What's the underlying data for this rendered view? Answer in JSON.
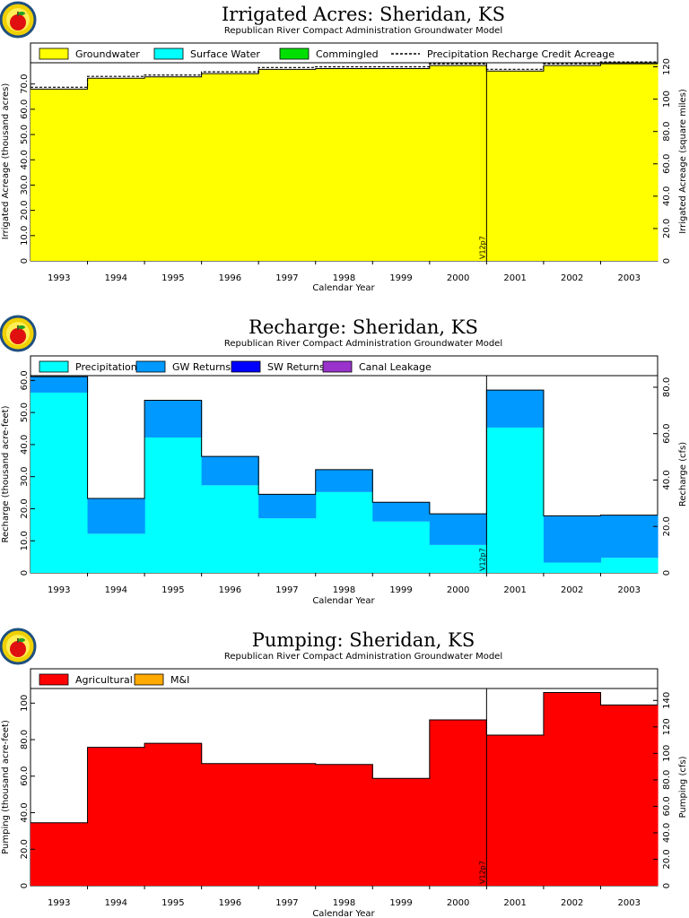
{
  "chart_data": [
    {
      "type": "area",
      "id": "acres",
      "title": "Irrigated Acres: Sheridan, KS",
      "subtitle": "Republican River Compact Administration Groundwater Model",
      "xlabel": "Calendar Year",
      "ylabel": "Irrigated Acreage (thousand acres)",
      "ylabel_right": "Irrigated Acreage (square miles)",
      "ylim": [
        0,
        78.4
      ],
      "ylim_right": [
        0,
        122.5
      ],
      "yticks": [
        10,
        20,
        30,
        40,
        50,
        60,
        70
      ],
      "ytick_labels": [
        "10.0",
        "20.0",
        "30.0",
        "40.0",
        "50.0",
        "60.0",
        "70.0"
      ],
      "yticks_right": [
        20,
        40,
        60,
        80,
        100,
        120
      ],
      "ytick_labels_right": [
        "20.0",
        "40.0",
        "60.0",
        "80.0",
        "100",
        "120"
      ],
      "categories": [
        "1993",
        "1994",
        "1995",
        "1996",
        "1997",
        "1998",
        "1999",
        "2000",
        "2001",
        "2002",
        "2003"
      ],
      "series": [
        {
          "name": "Groundwater",
          "color": "#ffff00",
          "kind": "fill",
          "values": [
            68.0,
            72.3,
            72.8,
            74.1,
            75.8,
            76.1,
            76.1,
            77.3,
            75.1,
            77.3,
            78.0
          ]
        },
        {
          "name": "Surface Water",
          "color": "#00ffff",
          "kind": "fill",
          "values": [
            0,
            0,
            0,
            0,
            0,
            0,
            0,
            0,
            0,
            0,
            0
          ]
        },
        {
          "name": "Commingled",
          "color": "#00e000",
          "kind": "fill",
          "values": [
            0,
            0,
            0,
            0,
            0,
            0,
            0,
            0,
            0,
            0,
            0
          ]
        },
        {
          "name": "Precipitation Recharge Credit Acreage",
          "color": "#000000",
          "kind": "dashed",
          "values": [
            68.0,
            72.3,
            72.8,
            74.1,
            75.8,
            76.1,
            76.1,
            77.3,
            75.1,
            77.3,
            78.0
          ]
        }
      ],
      "marker": {
        "label": "V12p7",
        "after_category": "2000"
      },
      "legend_position": "top"
    },
    {
      "type": "area",
      "id": "recharge",
      "title": "Recharge: Sheridan, KS",
      "subtitle": "Republican River Compact Administration Groundwater Model",
      "xlabel": "Calendar Year",
      "ylabel": "Recharge (thousand acre-feet)",
      "ylabel_right": "Recharge (cfs)",
      "ylim": [
        0,
        61.5
      ],
      "ylim_right": [
        0,
        85
      ],
      "yticks": [
        10,
        20,
        30,
        40,
        50,
        60
      ],
      "ytick_labels": [
        "10.0",
        "20.0",
        "30.0",
        "40.0",
        "50.0",
        "60.0"
      ],
      "yticks_right": [
        20,
        40,
        60,
        80
      ],
      "ytick_labels_right": [
        "20.0",
        "40.0",
        "60.0",
        "80.0"
      ],
      "categories": [
        "1993",
        "1994",
        "1995",
        "1996",
        "1997",
        "1998",
        "1999",
        "2000",
        "2001",
        "2002",
        "2003"
      ],
      "series": [
        {
          "name": "Precipitation",
          "color": "#00ffff",
          "kind": "fill",
          "values": [
            56.2,
            12.2,
            42.2,
            27.3,
            17.0,
            25.2,
            16.0,
            8.7,
            45.3,
            3.2,
            4.7
          ]
        },
        {
          "name": "GW Returns",
          "color": "#0099ff",
          "kind": "fill",
          "values": [
            5.0,
            11.0,
            11.6,
            9.0,
            7.5,
            7.0,
            6.0,
            9.7,
            11.7,
            14.6,
            13.3
          ]
        },
        {
          "name": "SW Returns",
          "color": "#0000ff",
          "kind": "fill",
          "values": [
            0,
            0,
            0,
            0,
            0,
            0,
            0,
            0,
            0,
            0,
            0
          ]
        },
        {
          "name": "Canal Leakage",
          "color": "#9933cc",
          "kind": "fill",
          "values": [
            0,
            0,
            0,
            0,
            0,
            0,
            0,
            0,
            0,
            0,
            0
          ]
        }
      ],
      "marker": {
        "label": "V12p7",
        "after_category": "2000"
      },
      "legend_position": "top"
    },
    {
      "type": "area",
      "id": "pumping",
      "title": "Pumping: Sheridan, KS",
      "subtitle": "Republican River Compact Administration Groundwater Model",
      "xlabel": "Calendar Year",
      "ylabel": "Pumping (thousand acre-feet)",
      "ylabel_right": "Pumping (cfs)",
      "ylim": [
        0,
        108
      ],
      "ylim_right": [
        0,
        149
      ],
      "yticks": [
        20,
        40,
        60,
        80,
        100
      ],
      "ytick_labels": [
        "20.0",
        "40.0",
        "60.0",
        "80.0",
        "100"
      ],
      "yticks_right": [
        20,
        40,
        60,
        80,
        100,
        120,
        140
      ],
      "ytick_labels_right": [
        "20.0",
        "40.0",
        "60.0",
        "80.0",
        "100",
        "120",
        "140"
      ],
      "categories": [
        "1993",
        "1994",
        "1995",
        "1996",
        "1997",
        "1998",
        "1999",
        "2000",
        "2001",
        "2002",
        "2003"
      ],
      "series": [
        {
          "name": "Agricultural",
          "color": "#ff0000",
          "kind": "fill",
          "values": [
            34.5,
            75.8,
            78.0,
            66.9,
            66.9,
            66.4,
            58.8,
            90.8,
            82.5,
            105.8,
            99.0
          ]
        },
        {
          "name": "M&I",
          "color": "#ffaa00",
          "kind": "fill",
          "values": [
            0,
            0,
            0,
            0,
            0,
            0,
            0,
            0,
            0,
            0,
            0
          ]
        }
      ],
      "marker": {
        "label": "V12p7",
        "after_category": "2000"
      },
      "legend_position": "top"
    }
  ]
}
